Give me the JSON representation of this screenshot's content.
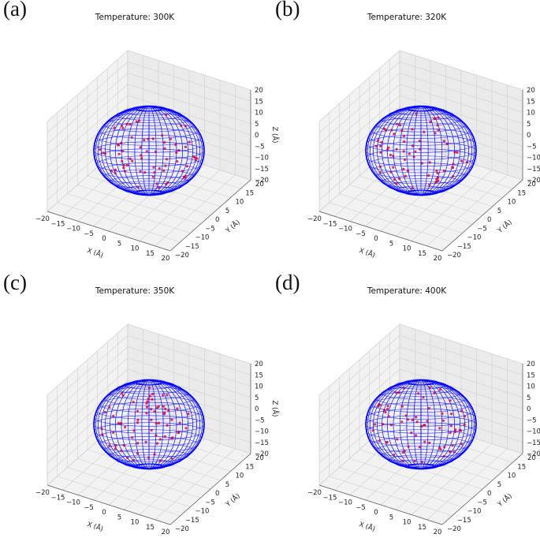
{
  "chart_data": [
    {
      "type": "scatter3d",
      "panel_label": "(a)",
      "title": "Temperature: 300K",
      "xlabel": "X (Å)",
      "ylabel": "Y (Å)",
      "zlabel": "Z (Å)",
      "xlim": [
        -20,
        20
      ],
      "ylim": [
        -20,
        20
      ],
      "zlim": [
        -20,
        20
      ],
      "xticks": [
        -20,
        -15,
        -10,
        -5,
        0,
        5,
        10,
        15,
        20
      ],
      "yticks": [
        -20,
        -15,
        -10,
        -5,
        0,
        5,
        10,
        15,
        20
      ],
      "zticks": [
        -20,
        -15,
        -10,
        -5,
        0,
        5,
        10,
        15,
        20
      ],
      "surface": {
        "shape": "sphere",
        "center": [
          0,
          0,
          0
        ],
        "radius": 15,
        "color": "#0000ff"
      },
      "particles_color": "#cc0044",
      "grid": true
    },
    {
      "type": "scatter3d",
      "panel_label": "(b)",
      "title": "Temperature: 320K",
      "xlabel": "X (Å)",
      "ylabel": "Y (Å)",
      "zlabel": "Z (Å)",
      "xlim": [
        -20,
        20
      ],
      "ylim": [
        -20,
        20
      ],
      "zlim": [
        -20,
        20
      ],
      "xticks": [
        -20,
        -15,
        -10,
        -5,
        0,
        5,
        10,
        15,
        20
      ],
      "yticks": [
        -20,
        -15,
        -10,
        -5,
        0,
        5,
        10,
        15,
        20
      ],
      "zticks": [
        -20,
        -15,
        -10,
        -5,
        0,
        5,
        10,
        15,
        20
      ],
      "surface": {
        "shape": "sphere",
        "center": [
          0,
          0,
          0
        ],
        "radius": 15,
        "color": "#0000ff"
      },
      "particles_color": "#cc0044",
      "grid": true
    },
    {
      "type": "scatter3d",
      "panel_label": "(c)",
      "title": "Temperature: 350K",
      "xlabel": "X (Å)",
      "ylabel": "Y (Å)",
      "zlabel": "Z (Å)",
      "xlim": [
        -20,
        20
      ],
      "ylim": [
        -20,
        20
      ],
      "zlim": [
        -20,
        20
      ],
      "xticks": [
        -20,
        -15,
        -10,
        -5,
        0,
        5,
        10,
        15,
        20
      ],
      "yticks": [
        -20,
        -15,
        -10,
        -5,
        0,
        5,
        10,
        15,
        20
      ],
      "zticks": [
        -20,
        -15,
        -10,
        -5,
        0,
        5,
        10,
        15,
        20
      ],
      "surface": {
        "shape": "sphere",
        "center": [
          0,
          0,
          0
        ],
        "radius": 15,
        "color": "#0000ff"
      },
      "particles_color": "#cc0044",
      "grid": true
    },
    {
      "type": "scatter3d",
      "panel_label": "(d)",
      "title": "Temperature: 400K",
      "xlabel": "X (Å)",
      "ylabel": "Y (Å)",
      "zlabel": "Z (Å)",
      "xlim": [
        -20,
        20
      ],
      "ylim": [
        -20,
        20
      ],
      "zlim": [
        -20,
        20
      ],
      "xticks": [
        -20,
        -15,
        -10,
        -5,
        0,
        5,
        10,
        15,
        20
      ],
      "yticks": [
        -20,
        -15,
        -10,
        -5,
        0,
        5,
        10,
        15,
        20
      ],
      "zticks": [
        -20,
        -15,
        -10,
        -5,
        0,
        5,
        10,
        15,
        20
      ],
      "surface": {
        "shape": "sphere",
        "center": [
          0,
          0,
          0
        ],
        "radius": 15,
        "color": "#0000ff"
      },
      "particles_color": "#cc0044",
      "grid": true
    }
  ]
}
